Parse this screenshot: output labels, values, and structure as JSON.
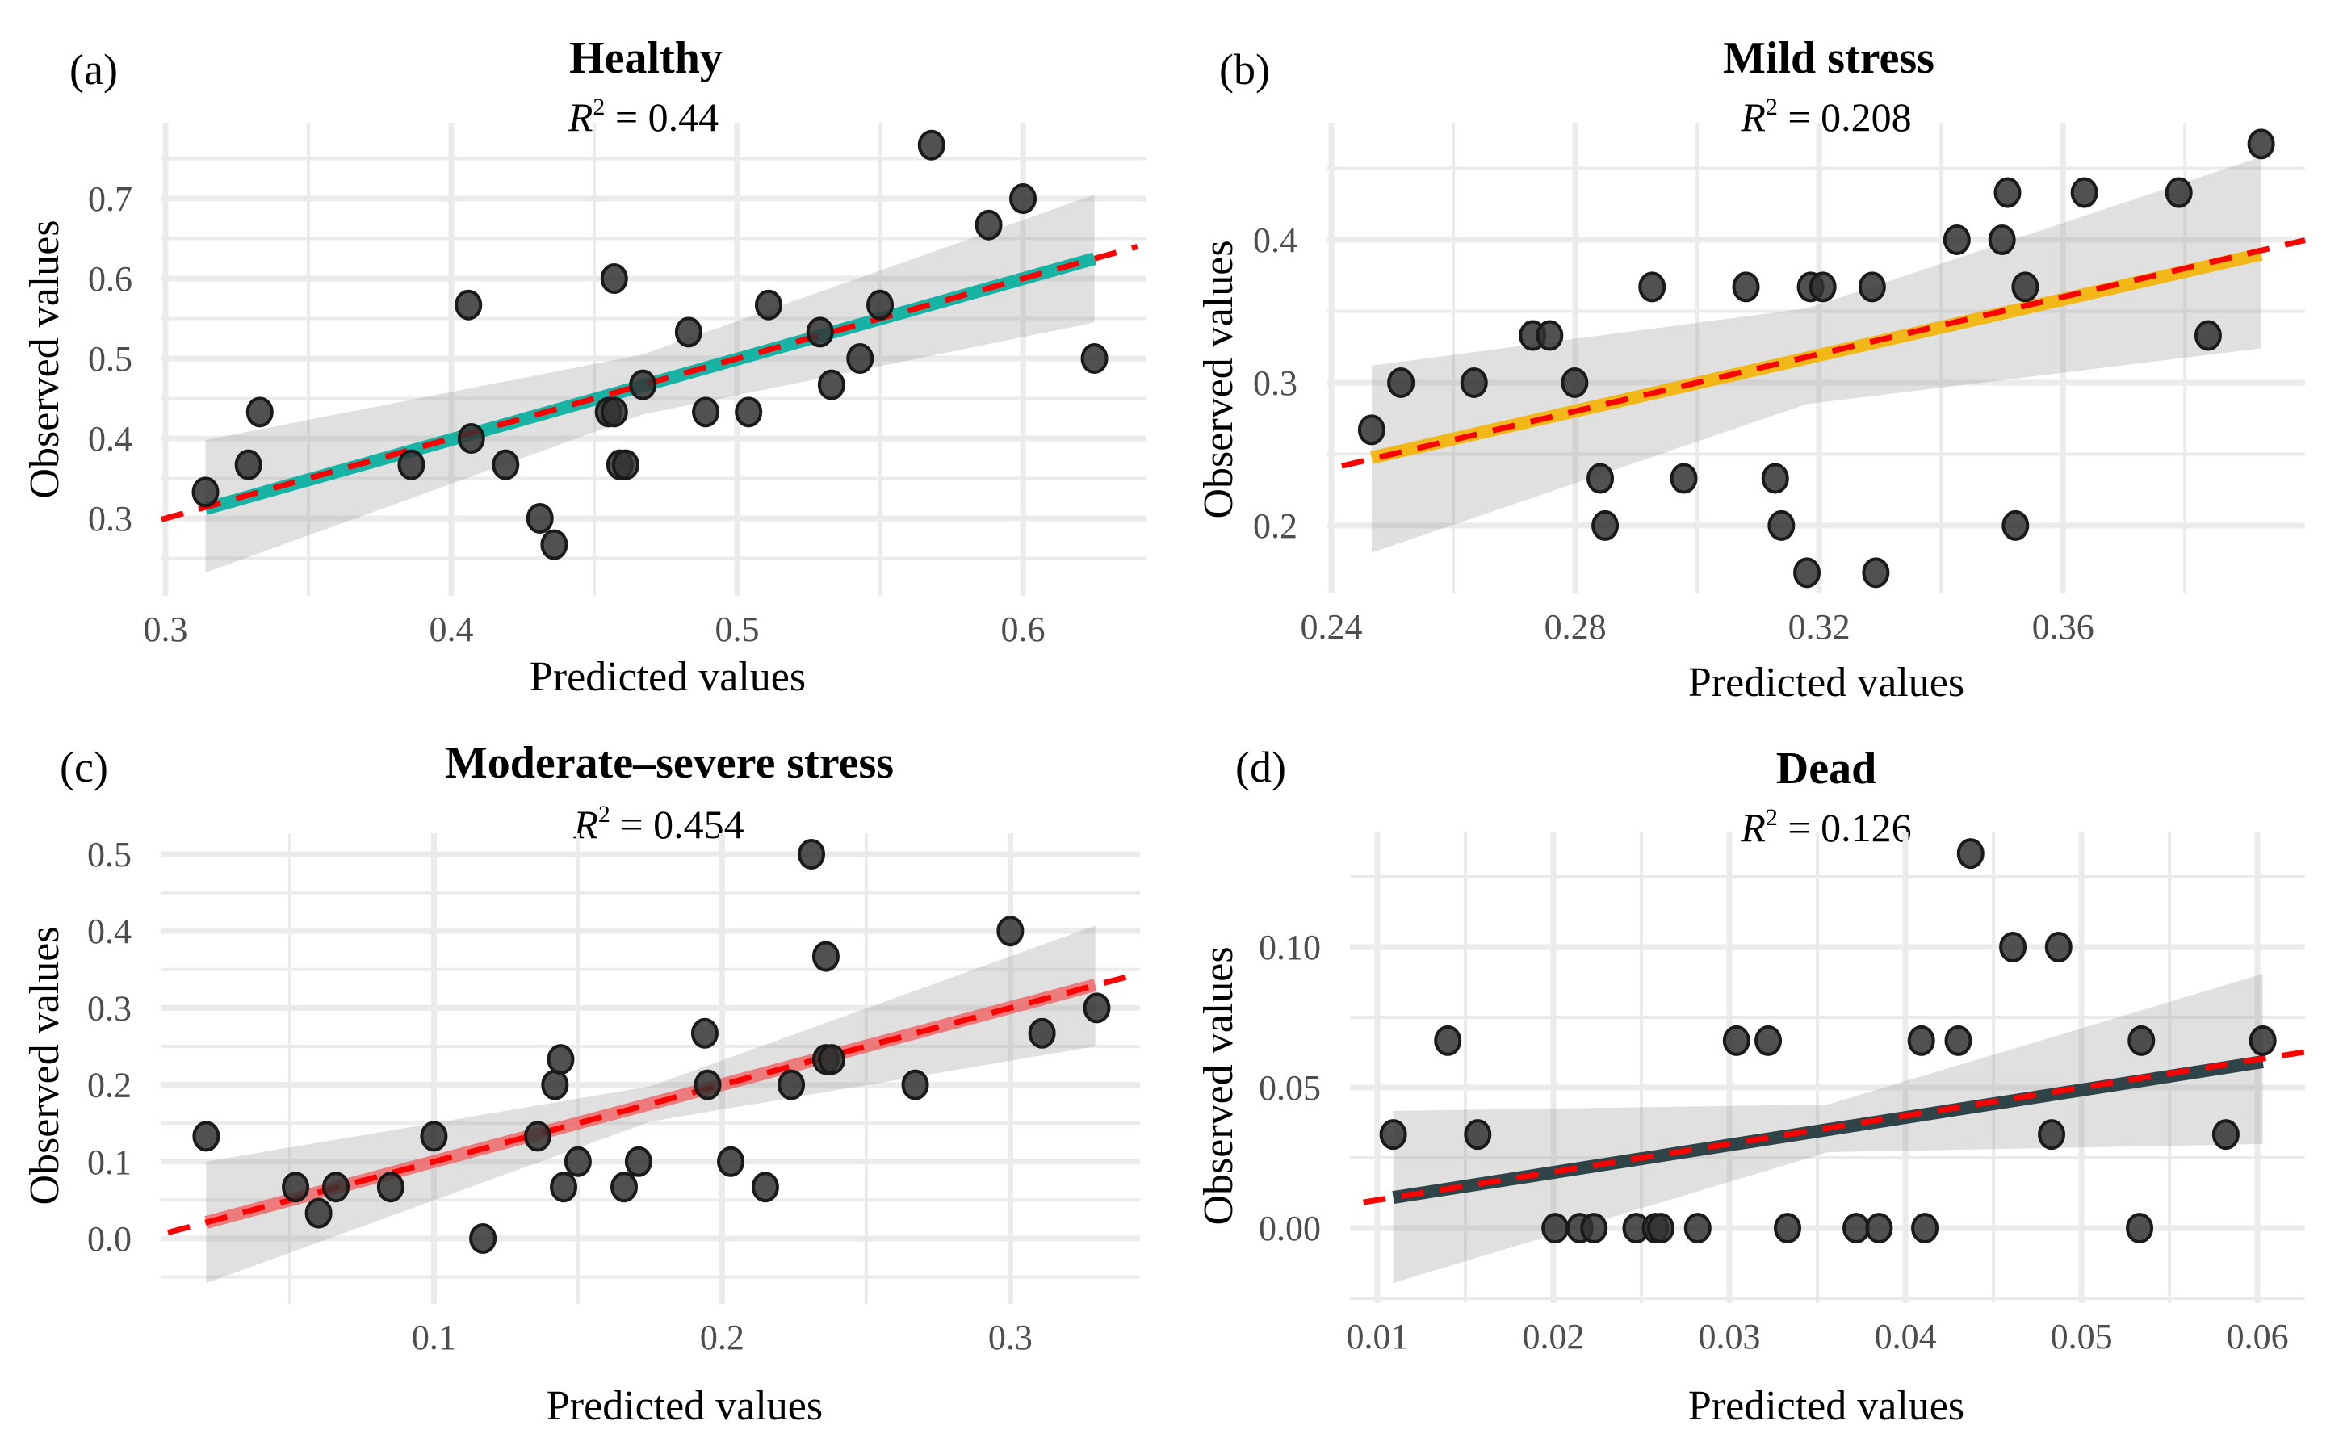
{
  "figure": {
    "shared": {
      "xlabel": "Predicted values",
      "ylabel": "Observed values",
      "r2_prefix": "R",
      "r2_sup": "2",
      "identity_line_color": "#ff0000",
      "ribbon_color": "#999999",
      "point_color": "#333333"
    }
  },
  "chart_data": [
    {
      "type": "scatter",
      "panel": "(a)",
      "title": "Healthy",
      "r2_text": " = 0.44",
      "r2": 0.44,
      "xlabel": "Predicted values",
      "ylabel": "Observed values",
      "xlim": [
        0.2986,
        0.6432
      ],
      "ylim": [
        0.203,
        0.795
      ],
      "xticks": [
        0.3,
        0.4,
        0.5,
        0.6
      ],
      "xtick_labels": [
        "0.3",
        "0.4",
        "0.5",
        "0.6"
      ],
      "xminor": [
        0.35,
        0.45,
        0.55
      ],
      "yticks": [
        0.3,
        0.4,
        0.5,
        0.6,
        0.7
      ],
      "ytick_labels": [
        "0.3",
        "0.4",
        "0.5",
        "0.6",
        "0.7"
      ],
      "yminor": [
        0.25,
        0.35,
        0.45,
        0.55,
        0.65,
        0.75
      ],
      "grid": true,
      "fit_color": "#17b3a5",
      "fit_line": {
        "x": [
          0.314,
          0.625
        ],
        "y": [
          0.312,
          0.625
        ]
      },
      "ribbon": {
        "x": [
          0.314,
          0.625
        ],
        "upper": [
          0.398,
          0.705
        ],
        "lower": [
          0.232,
          0.545
        ],
        "mid_x": 0.467,
        "mid_upper": 0.505,
        "mid_lower": 0.43
      },
      "identity_line": {
        "x": [
          0.2986,
          0.64
        ]
      },
      "points": [
        [
          0.314,
          0.333
        ],
        [
          0.329,
          0.367
        ],
        [
          0.333,
          0.433
        ],
        [
          0.386,
          0.367
        ],
        [
          0.406,
          0.567
        ],
        [
          0.407,
          0.4
        ],
        [
          0.419,
          0.367
        ],
        [
          0.431,
          0.3
        ],
        [
          0.436,
          0.267
        ],
        [
          0.457,
          0.6
        ],
        [
          0.455,
          0.433
        ],
        [
          0.457,
          0.433
        ],
        [
          0.459,
          0.367
        ],
        [
          0.461,
          0.367
        ],
        [
          0.467,
          0.467
        ],
        [
          0.483,
          0.533
        ],
        [
          0.489,
          0.433
        ],
        [
          0.504,
          0.433
        ],
        [
          0.511,
          0.567
        ],
        [
          0.529,
          0.533
        ],
        [
          0.533,
          0.467
        ],
        [
          0.543,
          0.5
        ],
        [
          0.55,
          0.567
        ],
        [
          0.568,
          0.767
        ],
        [
          0.588,
          0.667
        ],
        [
          0.6,
          0.7
        ],
        [
          0.625,
          0.5
        ]
      ]
    },
    {
      "type": "scatter",
      "panel": "(b)",
      "title": "Mild stress",
      "r2_text": " = 0.208",
      "r2": 0.208,
      "xlabel": "Predicted values",
      "ylabel": "Observed values",
      "xlim": [
        0.2392,
        0.3997
      ],
      "ylim": [
        0.1525,
        0.4819
      ],
      "xticks": [
        0.24,
        0.28,
        0.32,
        0.36
      ],
      "xtick_labels": [
        "0.24",
        "0.28",
        "0.32",
        "0.36"
      ],
      "xminor": [
        0.26,
        0.3,
        0.34,
        0.38
      ],
      "yticks": [
        0.2,
        0.3,
        0.4
      ],
      "ytick_labels": [
        "0.2",
        "0.3",
        "0.4"
      ],
      "yminor": [
        0.25,
        0.35,
        0.45
      ],
      "grid": true,
      "fit_color": "#f2b817",
      "fit_line": {
        "x": [
          0.2466,
          0.3925
        ],
        "y": [
          0.2475,
          0.39
        ]
      },
      "ribbon": {
        "x": [
          0.2466,
          0.3925
        ],
        "upper": [
          0.312,
          0.458
        ],
        "lower": [
          0.181,
          0.324
        ],
        "mid_x": 0.318,
        "mid_upper": 0.352,
        "mid_lower": 0.285
      },
      "identity_line": {
        "x": [
          0.2417,
          0.3997
        ]
      },
      "points": [
        [
          0.2466,
          0.267
        ],
        [
          0.2514,
          0.3
        ],
        [
          0.2634,
          0.3
        ],
        [
          0.273,
          0.333
        ],
        [
          0.2758,
          0.333
        ],
        [
          0.2799,
          0.3
        ],
        [
          0.2841,
          0.233
        ],
        [
          0.2849,
          0.2
        ],
        [
          0.2926,
          0.367
        ],
        [
          0.2978,
          0.233
        ],
        [
          0.308,
          0.367
        ],
        [
          0.3128,
          0.233
        ],
        [
          0.3138,
          0.2
        ],
        [
          0.318,
          0.167
        ],
        [
          0.3186,
          0.367
        ],
        [
          0.3206,
          0.367
        ],
        [
          0.3287,
          0.367
        ],
        [
          0.3293,
          0.167
        ],
        [
          0.3426,
          0.4
        ],
        [
          0.35,
          0.4
        ],
        [
          0.3509,
          0.433
        ],
        [
          0.3522,
          0.2
        ],
        [
          0.3538,
          0.367
        ],
        [
          0.3635,
          0.433
        ],
        [
          0.379,
          0.433
        ],
        [
          0.3838,
          0.333
        ],
        [
          0.3925,
          0.467
        ]
      ]
    },
    {
      "type": "scatter",
      "panel": "(c)",
      "title": "Moderate–severe stress",
      "r2_text": " = 0.454",
      "r2": 0.454,
      "xlabel": "Predicted values",
      "ylabel": "Observed values",
      "xlim": [
        0.0052,
        0.345
      ],
      "ylim": [
        -0.0851,
        0.5273
      ],
      "xticks": [
        0.1,
        0.2,
        0.3
      ],
      "xtick_labels": [
        "0.1",
        "0.2",
        "0.3"
      ],
      "xminor": [
        0.05,
        0.15,
        0.25
      ],
      "yticks": [
        0.0,
        0.1,
        0.2,
        0.3,
        0.4,
        0.5
      ],
      "ytick_labels": [
        "0.0",
        "0.1",
        "0.2",
        "0.3",
        "0.4",
        "0.5"
      ],
      "yminor": [
        -0.05,
        0.05,
        0.15,
        0.25,
        0.35,
        0.45
      ],
      "grid": true,
      "fit_color": "#f06262",
      "fit_line": {
        "x": [
          0.021,
          0.3295
        ],
        "y": [
          0.021,
          0.33
        ]
      },
      "ribbon": {
        "x": [
          0.021,
          0.3295
        ],
        "upper": [
          0.1,
          0.407
        ],
        "lower": [
          -0.058,
          0.25
        ],
        "mid_x": 0.175,
        "mid_upper": 0.198,
        "mid_lower": 0.152
      },
      "identity_line": {
        "x": [
          0.0077,
          0.345
        ]
      },
      "points": [
        [
          0.021,
          0.133
        ],
        [
          0.052,
          0.067
        ],
        [
          0.06,
          0.033
        ],
        [
          0.066,
          0.067
        ],
        [
          0.085,
          0.067
        ],
        [
          0.1,
          0.133
        ],
        [
          0.117,
          0.0
        ],
        [
          0.136,
          0.133
        ],
        [
          0.142,
          0.2
        ],
        [
          0.144,
          0.233
        ],
        [
          0.145,
          0.067
        ],
        [
          0.15,
          0.1
        ],
        [
          0.166,
          0.067
        ],
        [
          0.171,
          0.1
        ],
        [
          0.194,
          0.267
        ],
        [
          0.195,
          0.2
        ],
        [
          0.203,
          0.1
        ],
        [
          0.215,
          0.067
        ],
        [
          0.224,
          0.2
        ],
        [
          0.231,
          0.5
        ],
        [
          0.236,
          0.367
        ],
        [
          0.236,
          0.233
        ],
        [
          0.238,
          0.233
        ],
        [
          0.267,
          0.2
        ],
        [
          0.3,
          0.4
        ],
        [
          0.311,
          0.267
        ],
        [
          0.33,
          0.3
        ]
      ]
    },
    {
      "type": "scatter",
      "panel": "(d)",
      "title": "Dead",
      "r2_text": " = 0.126",
      "r2": 0.126,
      "xlabel": "Predicted values",
      "ylabel": "Observed values",
      "xlim": [
        0.00844,
        0.0627
      ],
      "ylim": [
        -0.0267,
        0.1408
      ],
      "xticks": [
        0.01,
        0.02,
        0.03,
        0.04,
        0.05,
        0.06
      ],
      "xtick_labels": [
        "0.01",
        "0.02",
        "0.03",
        "0.04",
        "0.05",
        "0.06"
      ],
      "xminor": [
        0.015,
        0.025,
        0.035,
        0.045,
        0.055
      ],
      "yticks": [
        0.0,
        0.05,
        0.1
      ],
      "ytick_labels": [
        "0.00",
        "0.05",
        "0.10"
      ],
      "yminor": [
        -0.025,
        0.025,
        0.075,
        0.125
      ],
      "grid": true,
      "fit_color": "#2f4448",
      "fit_line": {
        "x": [
          0.0109,
          0.0603
        ],
        "y": [
          0.0109,
          0.0592
        ]
      },
      "ribbon": {
        "x": [
          0.0109,
          0.0603
        ],
        "upper": [
          0.0417,
          0.0905
        ],
        "lower": [
          -0.0195,
          0.0299
        ],
        "mid_x": 0.0356,
        "mid_upper": 0.044,
        "mid_lower": 0.027
      },
      "identity_line": {
        "x": [
          0.0092,
          0.0627
        ]
      },
      "points": [
        [
          0.0109,
          0.0333
        ],
        [
          0.014,
          0.0667
        ],
        [
          0.0157,
          0.0333
        ],
        [
          0.0201,
          0.0
        ],
        [
          0.0215,
          0.0
        ],
        [
          0.0223,
          0.0
        ],
        [
          0.0247,
          0.0
        ],
        [
          0.0258,
          0.0
        ],
        [
          0.0261,
          0.0
        ],
        [
          0.0282,
          0.0
        ],
        [
          0.0304,
          0.0667
        ],
        [
          0.0322,
          0.0667
        ],
        [
          0.0333,
          0.0
        ],
        [
          0.0372,
          0.0
        ],
        [
          0.0385,
          0.0
        ],
        [
          0.0409,
          0.0667
        ],
        [
          0.0411,
          0.0
        ],
        [
          0.043,
          0.0667
        ],
        [
          0.0437,
          0.1333
        ],
        [
          0.0461,
          0.1
        ],
        [
          0.0483,
          0.0333
        ],
        [
          0.0487,
          0.1
        ],
        [
          0.0533,
          0.0
        ],
        [
          0.0534,
          0.0667
        ],
        [
          0.0582,
          0.0333
        ],
        [
          0.0603,
          0.0667
        ]
      ]
    }
  ]
}
